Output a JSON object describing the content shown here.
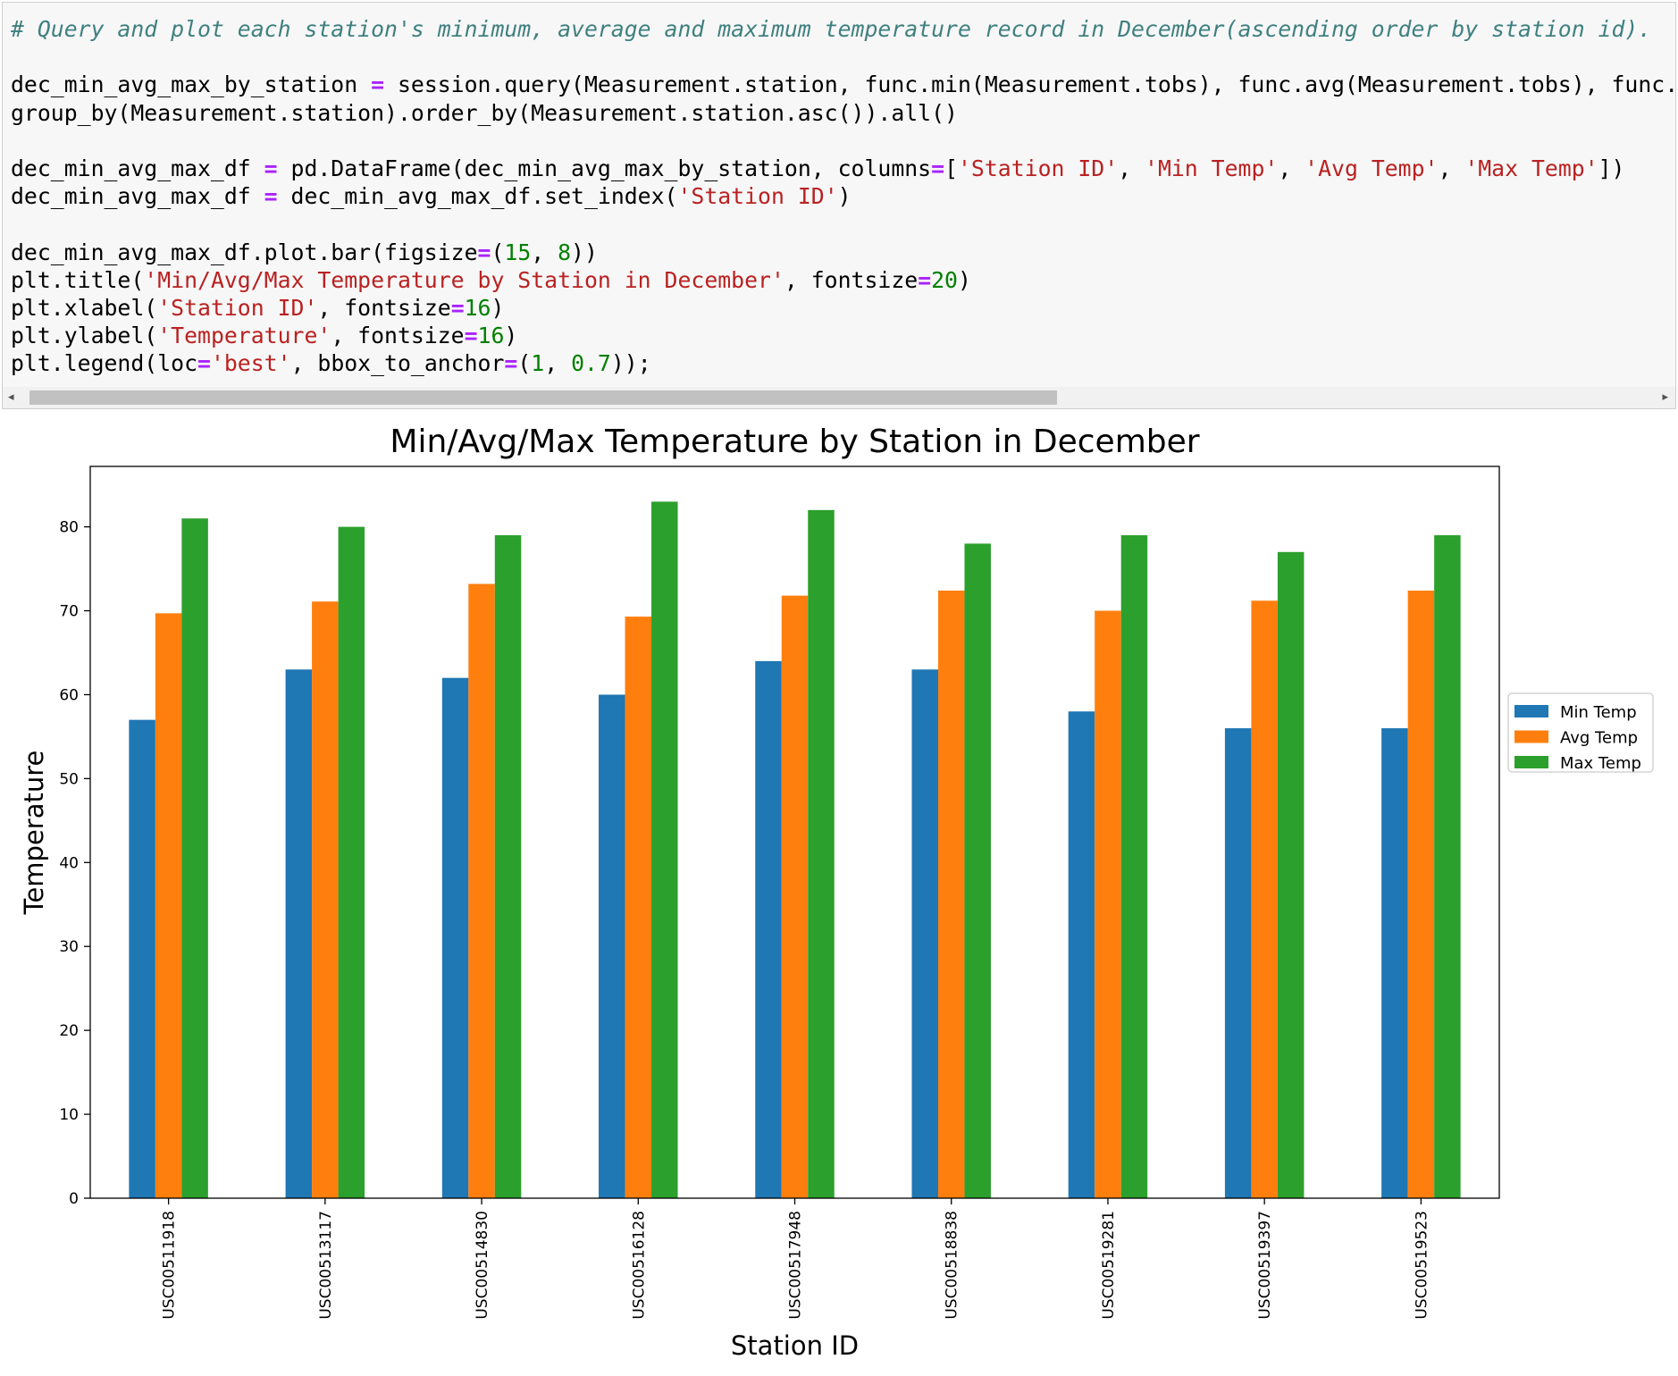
{
  "code_cell": {
    "lines": [
      [
        {
          "t": "# Query and plot each station's minimum, average and maximum temperature record in December(ascending order by station id).",
          "c": "c"
        }
      ],
      [],
      [
        {
          "t": "dec_min_avg_max_by_station "
        },
        {
          "t": "=",
          "c": "o"
        },
        {
          "t": " session.query(Measurement.station, func.min(Measurement.tobs), func.avg(Measurement.tobs), func.max("
        }
      ],
      [
        {
          "t": "group_by(Measurement.station).order_by(Measurement.station.asc()).all()"
        }
      ],
      [],
      [
        {
          "t": "dec_min_avg_max_df "
        },
        {
          "t": "=",
          "c": "o"
        },
        {
          "t": " pd.DataFrame(dec_min_avg_max_by_station, columns"
        },
        {
          "t": "=",
          "c": "o"
        },
        {
          "t": "["
        },
        {
          "t": "'Station ID'",
          "c": "s"
        },
        {
          "t": ", "
        },
        {
          "t": "'Min Temp'",
          "c": "s"
        },
        {
          "t": ", "
        },
        {
          "t": "'Avg Temp'",
          "c": "s"
        },
        {
          "t": ", "
        },
        {
          "t": "'Max Temp'",
          "c": "s"
        },
        {
          "t": "])"
        }
      ],
      [
        {
          "t": "dec_min_avg_max_df "
        },
        {
          "t": "=",
          "c": "o"
        },
        {
          "t": " dec_min_avg_max_df.set_index("
        },
        {
          "t": "'Station ID'",
          "c": "s"
        },
        {
          "t": ")"
        }
      ],
      [],
      [
        {
          "t": "dec_min_avg_max_df.plot.bar(figsize"
        },
        {
          "t": "=",
          "c": "o"
        },
        {
          "t": "("
        },
        {
          "t": "15",
          "c": "n"
        },
        {
          "t": ", "
        },
        {
          "t": "8",
          "c": "n"
        },
        {
          "t": "))"
        }
      ],
      [
        {
          "t": "plt.title("
        },
        {
          "t": "'Min/Avg/Max Temperature by Station in December'",
          "c": "s"
        },
        {
          "t": ", fontsize"
        },
        {
          "t": "=",
          "c": "o"
        },
        {
          "t": "20",
          "c": "n"
        },
        {
          "t": ")"
        }
      ],
      [
        {
          "t": "plt.xlabel("
        },
        {
          "t": "'Station ID'",
          "c": "s"
        },
        {
          "t": ", fontsize"
        },
        {
          "t": "=",
          "c": "o"
        },
        {
          "t": "16",
          "c": "n"
        },
        {
          "t": ")"
        }
      ],
      [
        {
          "t": "plt.ylabel("
        },
        {
          "t": "'Temperature'",
          "c": "s"
        },
        {
          "t": ", fontsize"
        },
        {
          "t": "=",
          "c": "o"
        },
        {
          "t": "16",
          "c": "n"
        },
        {
          "t": ")"
        }
      ],
      [
        {
          "t": "plt.legend(loc"
        },
        {
          "t": "=",
          "c": "o"
        },
        {
          "t": "'best'",
          "c": "s"
        },
        {
          "t": ", bbox_to_anchor"
        },
        {
          "t": "=",
          "c": "o"
        },
        {
          "t": "("
        },
        {
          "t": "1",
          "c": "n"
        },
        {
          "t": ", "
        },
        {
          "t": "0.7",
          "c": "n"
        },
        {
          "t": "));"
        }
      ]
    ],
    "scroll_left_glyph": "◂",
    "scroll_right_glyph": "▸"
  },
  "chart_data": {
    "type": "bar",
    "title": "Min/Avg/Max Temperature by Station in December",
    "xlabel": "Station ID",
    "ylabel": "Temperature",
    "categories": [
      "USC00511918",
      "USC00513117",
      "USC00514830",
      "USC00516128",
      "USC00517948",
      "USC00518838",
      "USC00519281",
      "USC00519397",
      "USC00519523"
    ],
    "series": [
      {
        "name": "Min Temp",
        "color": "#1f77b4",
        "values": [
          57,
          63,
          62,
          60,
          64,
          63,
          58,
          56,
          56
        ]
      },
      {
        "name": "Avg Temp",
        "color": "#ff7f0e",
        "values": [
          69.7,
          71.1,
          73.2,
          69.3,
          71.8,
          72.4,
          70.0,
          71.2,
          72.4
        ]
      },
      {
        "name": "Max Temp",
        "color": "#2ca02c",
        "values": [
          81,
          80,
          79,
          83,
          82,
          78,
          79,
          77,
          79
        ]
      }
    ],
    "yticks": [
      0,
      10,
      20,
      30,
      40,
      50,
      60,
      70,
      80
    ],
    "ylim": [
      0,
      87.2
    ],
    "grid": false,
    "legend_position": "right"
  }
}
